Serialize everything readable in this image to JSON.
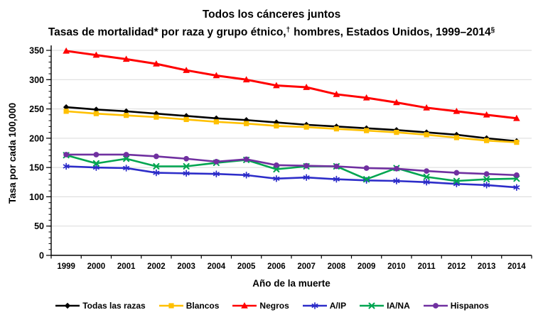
{
  "title": {
    "line1": "Todos los cánceres juntos",
    "line2_part1": "Tasas de mortalidad* por raza y grupo étnico,",
    "line2_sup1": "†",
    "line2_part2": "hombres, Estados Unidos, 1999–2014",
    "line2_sup2": "§"
  },
  "chart_data": {
    "type": "line",
    "x": [
      1999,
      2000,
      2001,
      2002,
      2003,
      2004,
      2005,
      2006,
      2007,
      2008,
      2009,
      2010,
      2011,
      2012,
      2013,
      2014
    ],
    "xlabel": "Año de la muerte",
    "ylabel": "Tasa por cada 100,000",
    "ylim": [
      0,
      350
    ],
    "ytick_step": 50,
    "ytick_minor_step": 10,
    "grid": true,
    "gridline_color": "#d9d9d9",
    "axis_color": "#000000",
    "legend_position": "bottom",
    "series": [
      {
        "name": "Todas las razas",
        "color": "#000000",
        "marker": "diamond",
        "values": [
          253,
          249,
          246,
          242,
          238,
          234,
          231,
          227,
          223,
          220,
          217,
          214,
          210,
          206,
          200,
          195
        ]
      },
      {
        "name": "Blancos",
        "color": "#FFC000",
        "marker": "square",
        "values": [
          246,
          242,
          239,
          236,
          232,
          228,
          225,
          221,
          219,
          216,
          213,
          210,
          206,
          201,
          196,
          193
        ]
      },
      {
        "name": "Negros",
        "color": "#FF0000",
        "marker": "triangle",
        "values": [
          349,
          342,
          335,
          327,
          316,
          307,
          300,
          290,
          287,
          275,
          269,
          261,
          252,
          246,
          240,
          234
        ]
      },
      {
        "name": "A/IP",
        "color": "#2D2DC9",
        "marker": "asterisk",
        "values": [
          152,
          150,
          149,
          141,
          140,
          139,
          137,
          131,
          133,
          130,
          128,
          127,
          125,
          122,
          120,
          116
        ]
      },
      {
        "name": "IA/NA",
        "color": "#00A550",
        "marker": "x",
        "values": [
          171,
          157,
          165,
          152,
          152,
          158,
          163,
          147,
          152,
          152,
          130,
          149,
          134,
          127,
          130,
          131
        ]
      },
      {
        "name": "Hispanos",
        "color": "#7030A0",
        "marker": "circle",
        "values": [
          172,
          172,
          172,
          169,
          165,
          160,
          164,
          154,
          153,
          152,
          149,
          148,
          144,
          141,
          139,
          137
        ]
      }
    ]
  }
}
